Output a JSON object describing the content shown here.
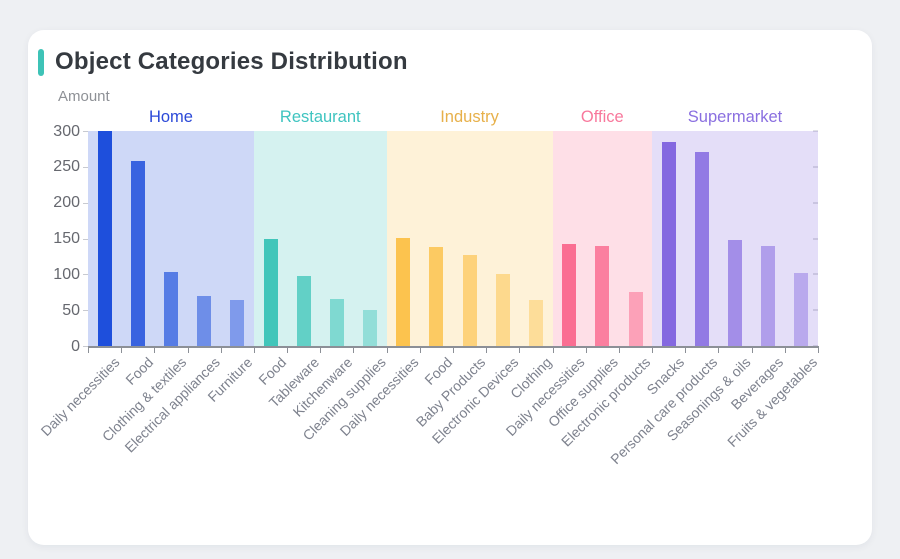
{
  "page": {
    "background": "#eef0f3",
    "card_background": "#ffffff"
  },
  "header": {
    "accent_color": "#3ec3b7"
  },
  "chart_data": {
    "type": "bar",
    "title": "Object Categories Distribution",
    "ylabel": "Amount",
    "xlabel": "",
    "ylim": [
      0,
      300
    ],
    "yticks": [
      0,
      50,
      100,
      150,
      200,
      250,
      300
    ],
    "grid": false,
    "legend_position": "group headers above plot, colored per group",
    "note": "22 bars in 5 colored group bands; bar opacity fades within each group",
    "groups": [
      {
        "name": "Home",
        "bar_color": "#1e4fdc",
        "label_color": "#2b49d8",
        "items": [
          {
            "label": "Daily necessities",
            "value": 300
          },
          {
            "label": "Food",
            "value": 258
          },
          {
            "label": "Clothing & textiles",
            "value": 103
          },
          {
            "label": "Electrical appliances",
            "value": 70
          },
          {
            "label": "Furniture",
            "value": 64
          }
        ]
      },
      {
        "name": "Restaurant",
        "bar_color": "#41c6ba",
        "label_color": "#3fc4c0",
        "items": [
          {
            "label": "Food",
            "value": 149
          },
          {
            "label": "Tableware",
            "value": 97
          },
          {
            "label": "Kitchenware",
            "value": 65
          },
          {
            "label": "Cleaning supplies",
            "value": 50
          }
        ]
      },
      {
        "name": "Industry",
        "bar_color": "#fcc34e",
        "label_color": "#e7b04a",
        "items": [
          {
            "label": "Daily necessities",
            "value": 151
          },
          {
            "label": "Food",
            "value": 138
          },
          {
            "label": "Baby Products",
            "value": 127
          },
          {
            "label": "Electronic Devices",
            "value": 100
          },
          {
            "label": "Clothing",
            "value": 64
          }
        ]
      },
      {
        "name": "Office",
        "bar_color": "#fa6e92",
        "label_color": "#f8789c",
        "items": [
          {
            "label": "Daily necessities",
            "value": 142
          },
          {
            "label": "Office supplies",
            "value": 139
          },
          {
            "label": "Electronic products",
            "value": 75
          }
        ]
      },
      {
        "name": "Supermarket",
        "bar_color": "#8468e0",
        "label_color": "#8a6fe0",
        "items": [
          {
            "label": "Snacks",
            "value": 285
          },
          {
            "label": "Personal care products",
            "value": 271
          },
          {
            "label": "Seasonings & oils",
            "value": 148
          },
          {
            "label": "Beverages",
            "value": 140
          },
          {
            "label": "Fruits & vegetables",
            "value": 102
          }
        ]
      }
    ]
  }
}
